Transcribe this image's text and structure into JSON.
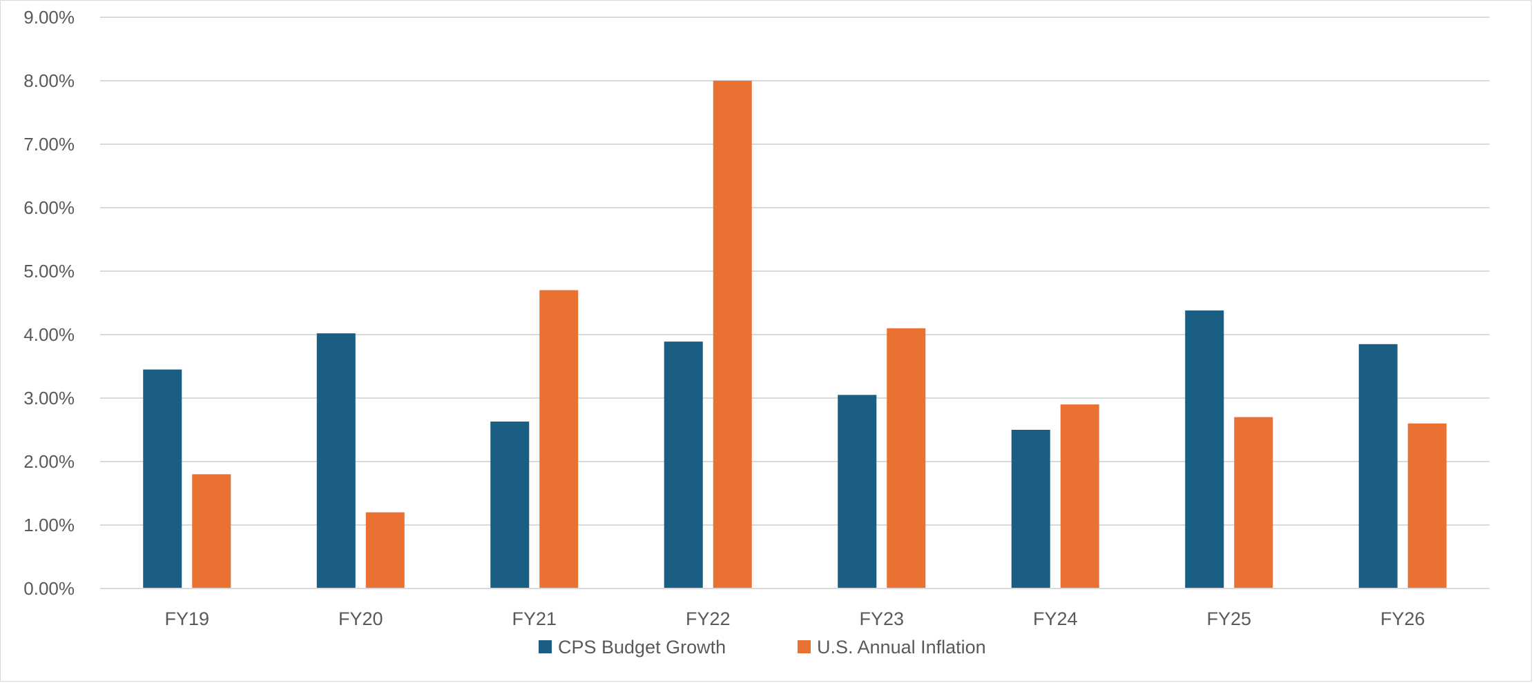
{
  "chart_data": {
    "type": "bar",
    "title": "",
    "xlabel": "",
    "ylabel": "",
    "categories": [
      "FY19",
      "FY20",
      "FY21",
      "FY22",
      "FY23",
      "FY24",
      "FY25",
      "FY26"
    ],
    "series": [
      {
        "name": "CPS Budget Growth",
        "color": "#1a5e83",
        "values": [
          3.45,
          4.02,
          2.63,
          3.89,
          3.05,
          2.5,
          4.38,
          3.85
        ]
      },
      {
        "name": "U.S. Annual Inflation",
        "color": "#e97132",
        "values": [
          1.8,
          1.2,
          4.7,
          8.0,
          4.1,
          2.9,
          2.7,
          2.6
        ]
      }
    ],
    "ylim": [
      0,
      9
    ],
    "yticks": [
      "0.00%",
      "1.00%",
      "2.00%",
      "3.00%",
      "4.00%",
      "5.00%",
      "6.00%",
      "7.00%",
      "8.00%",
      "9.00%"
    ],
    "grid": true,
    "legend_position": "bottom"
  }
}
